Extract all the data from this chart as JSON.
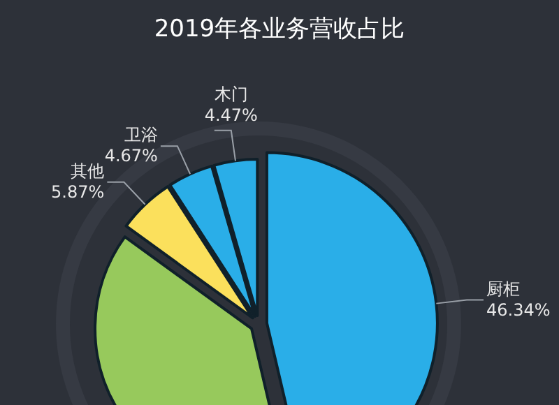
{
  "chart_data": {
    "type": "pie",
    "title": "2019年各业务营收占比",
    "categories": [
      "厨柜",
      null,
      "其他",
      "卫浴",
      "木门"
    ],
    "values": [
      46.34,
      38.65,
      5.87,
      4.67,
      4.47
    ],
    "colors": [
      "#2aaee8",
      "#97c95c",
      "#fbe05c",
      "#2aaee8",
      "#2aaee8"
    ],
    "value_labels": [
      "46.34%",
      null,
      "5.87%",
      "4.67%",
      "4.47%"
    ]
  }
}
